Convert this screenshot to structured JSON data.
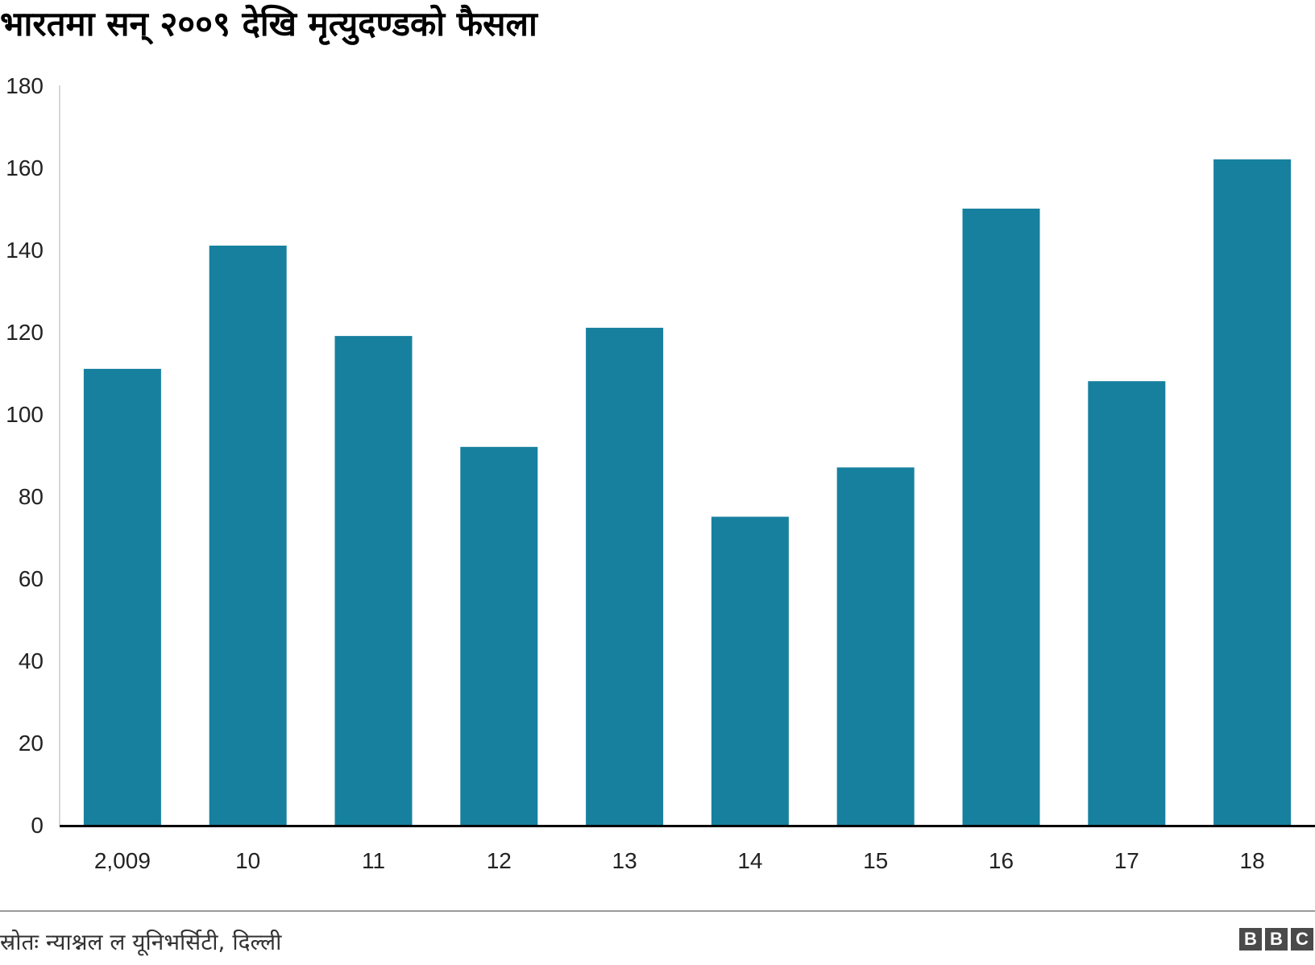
{
  "chart_data": {
    "type": "bar",
    "title": "भारतमा सन् २००९ देखि मृत्युदण्डको फैसला",
    "categories": [
      "2,009",
      "10",
      "11",
      "12",
      "13",
      "14",
      "15",
      "16",
      "17",
      "18"
    ],
    "values": [
      111,
      141,
      119,
      92,
      121,
      75,
      87,
      150,
      108,
      162
    ],
    "ylim": [
      0,
      180
    ],
    "yticks": [
      0,
      20,
      40,
      60,
      80,
      100,
      120,
      140,
      160,
      180
    ],
    "xlabel": "",
    "ylabel": "",
    "grid": false,
    "bar_color": "#17809f",
    "source": "स्रोतः न्याश्नल ल यूनिभर्सिटी, दिल्ली"
  },
  "branding": {
    "logo_letters": [
      "B",
      "B",
      "C"
    ]
  }
}
